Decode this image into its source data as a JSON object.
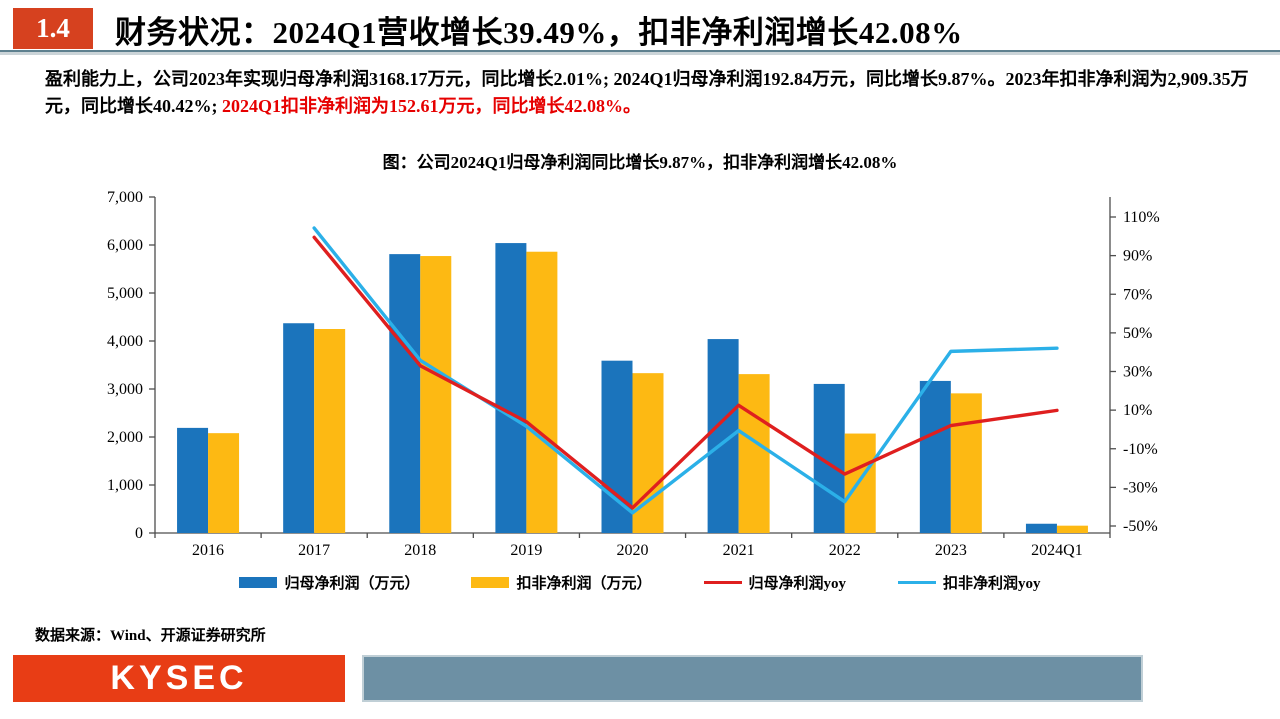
{
  "header": {
    "section_number": "1.4",
    "title": "财务状况：2024Q1营收增长39.49%，扣非净利润增长42.08%"
  },
  "summary": {
    "text_black": "盈利能力上，公司2023年实现归母净利润3168.17万元，同比增长2.01%; 2024Q1归母净利润192.84万元，同比增长9.87%。2023年扣非净利润为2,909.35万元，同比增长40.42%; ",
    "text_red": "2024Q1扣非净利润为152.61万元，同比增长42.08%。"
  },
  "chart": {
    "title": "图：公司2024Q1归母净利润同比增长9.87%，扣非净利润增长42.08%"
  },
  "chart_data": {
    "type": "combo",
    "categories": [
      "2016",
      "2017",
      "2018",
      "2019",
      "2020",
      "2021",
      "2022",
      "2023",
      "2024Q1"
    ],
    "series": [
      {
        "name": "归母净利润（万元）",
        "type": "bar",
        "axis": "left",
        "color": "#1b74bc",
        "values": [
          2190,
          4370,
          5810,
          6040,
          3590,
          4040,
          3105.7,
          3168.17,
          192.84
        ]
      },
      {
        "name": "扣非净利润（万元）",
        "type": "bar",
        "axis": "left",
        "color": "#fdb913",
        "values": [
          2080,
          4250,
          5770,
          5860,
          3330,
          3310,
          2071.9,
          2909.35,
          152.61
        ]
      },
      {
        "name": "归母净利润yoy",
        "type": "line",
        "axis": "right",
        "color": "#df1f1f",
        "values": [
          null,
          99.5,
          33.0,
          4.0,
          -40.6,
          12.5,
          -23.1,
          2.01,
          9.87
        ]
      },
      {
        "name": "扣非净利润yoy",
        "type": "line",
        "axis": "right",
        "color": "#2bb0e8",
        "values": [
          null,
          104.3,
          35.8,
          1.6,
          -43.2,
          -0.6,
          -37.4,
          40.42,
          42.08
        ]
      }
    ],
    "left_axis": {
      "min": 0,
      "max": 7000,
      "tick_step": 1000,
      "labels": [
        "0",
        "1,000",
        "2,000",
        "3,000",
        "4,000",
        "5,000",
        "6,000",
        "7,000"
      ]
    },
    "right_axis": {
      "min": -50,
      "max": 110,
      "tick_step": 20,
      "labels": [
        "-50%",
        "-30%",
        "-10%",
        "10%",
        "30%",
        "50%",
        "70%",
        "90%",
        "110%"
      ]
    },
    "grid": false,
    "legend_position": "bottom"
  },
  "source": {
    "label": "数据来源：Wind、开源证券研究所"
  },
  "footer": {
    "logo_text": "KYSEC",
    "brand_color": "#e83d15",
    "accent_bar_color": "#6d90a4"
  }
}
